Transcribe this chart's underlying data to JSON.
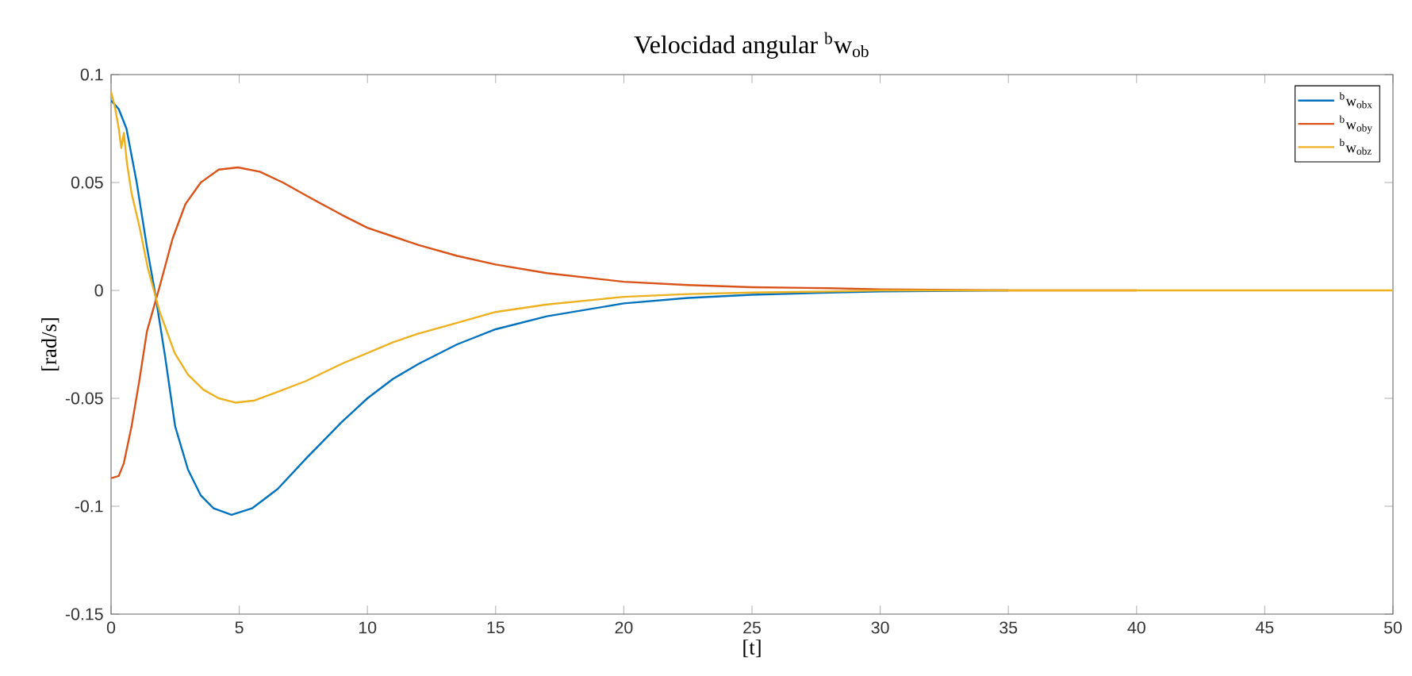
{
  "chart_data": {
    "type": "line",
    "title": "Velocidad angular $^{b}$w$_{ob}$",
    "xlabel": "[t]",
    "ylabel": "[rad/s]",
    "xlim": [
      0,
      50
    ],
    "ylim": [
      -0.15,
      0.1
    ],
    "xticks": [
      0,
      5,
      10,
      15,
      20,
      25,
      30,
      35,
      40,
      45,
      50
    ],
    "yticks": [
      {
        "value": -0.15,
        "label": "-0.15"
      },
      {
        "value": -0.1,
        "label": "-0.1"
      },
      {
        "value": -0.05,
        "label": "-0.05"
      },
      {
        "value": 0,
        "label": "0"
      },
      {
        "value": 0.05,
        "label": "0.05"
      },
      {
        "value": 0.1,
        "label": "0.1"
      }
    ],
    "grid": false,
    "legend": "top right",
    "marker": "none",
    "line_style": "solid",
    "series": [
      {
        "name": "$^{b}$w$_{obx}$",
        "color": "#0072bd",
        "x": [
          0,
          0.3,
          0.6,
          1.0,
          1.4,
          1.7,
          2.1,
          2.5,
          3.0,
          3.5,
          4.0,
          4.7,
          5.5,
          6.5,
          7.6,
          9.0,
          10,
          11,
          12,
          13.5,
          15,
          17,
          20,
          22.5,
          25,
          28,
          30,
          35
        ],
        "values": [
          0.088,
          0.084,
          0.075,
          0.05,
          0.02,
          0,
          -0.03,
          -0.063,
          -0.083,
          -0.095,
          -0.101,
          -0.104,
          -0.101,
          -0.092,
          -0.078,
          -0.061,
          -0.05,
          -0.041,
          -0.034,
          -0.025,
          -0.018,
          -0.012,
          -0.006,
          -0.0035,
          -0.002,
          -0.001,
          -0.0005,
          0
        ]
      },
      {
        "name": "$^{b}$w$_{oby}$",
        "color": "#d95319",
        "x": [
          0,
          0.3,
          0.5,
          0.8,
          1.1,
          1.4,
          1.9,
          2.4,
          2.9,
          3.5,
          4.2,
          4.95,
          5.8,
          6.7,
          7.6,
          9.0,
          10,
          11,
          12,
          13.5,
          15,
          17,
          20,
          22.5,
          25,
          28,
          30,
          35,
          40
        ],
        "values": [
          -0.087,
          -0.086,
          -0.08,
          -0.063,
          -0.042,
          -0.019,
          0.002,
          0.024,
          0.04,
          0.05,
          0.056,
          0.057,
          0.055,
          0.05,
          0.044,
          0.035,
          0.029,
          0.025,
          0.021,
          0.016,
          0.012,
          0.008,
          0.004,
          0.0025,
          0.0015,
          0.001,
          0.0005,
          0,
          0
        ]
      },
      {
        "name": "$^{b}$w$_{obz}$",
        "color": "#edb120",
        "x": [
          0,
          0.15,
          0.3,
          0.4,
          0.5,
          0.62,
          0.8,
          1.1,
          1.44,
          1.9,
          2.48,
          3.0,
          3.6,
          4.2,
          4.85,
          5.6,
          6.5,
          7.6,
          9.0,
          10,
          11,
          12,
          13.5,
          15,
          17,
          20,
          22.5,
          25,
          28,
          30,
          35,
          40,
          45,
          50
        ],
        "values": [
          0.092,
          0.085,
          0.075,
          0.066,
          0.073,
          0.059,
          0.045,
          0.03,
          0.01,
          -0.01,
          -0.029,
          -0.039,
          -0.046,
          -0.05,
          -0.052,
          -0.051,
          -0.047,
          -0.042,
          -0.034,
          -0.029,
          -0.024,
          -0.02,
          -0.015,
          -0.01,
          -0.0065,
          -0.003,
          -0.0017,
          -0.001,
          -0.0005,
          0,
          0,
          0,
          0,
          0
        ]
      }
    ]
  }
}
